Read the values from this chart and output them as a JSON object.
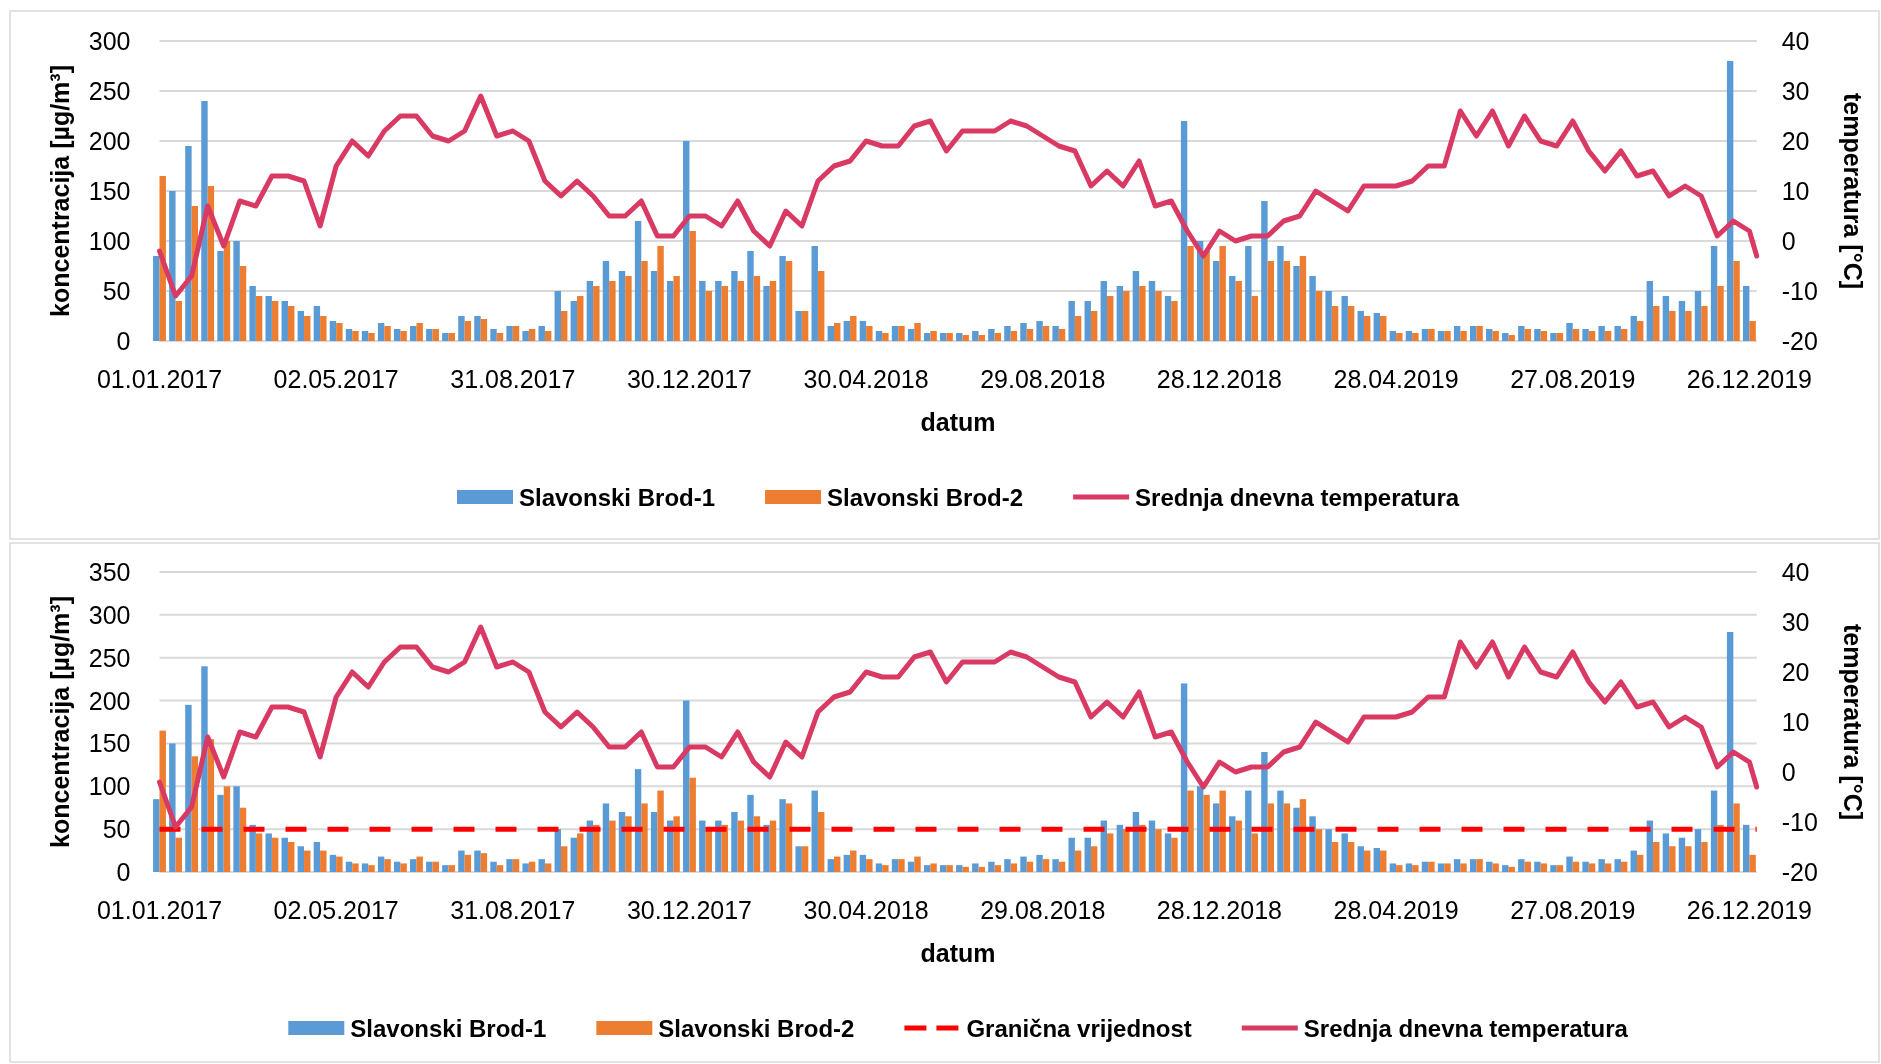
{
  "chart_data": [
    {
      "type": "bar",
      "xlabel": "datum",
      "ylabel": "koncentracija [µg/m³]",
      "y2label": "temperatura [°C]",
      "x": [
        "2017-01-01",
        "2017-01-12",
        "2017-01-23",
        "2017-02-03",
        "2017-02-14",
        "2017-02-25",
        "2017-03-08",
        "2017-03-19",
        "2017-03-30",
        "2017-04-10",
        "2017-04-21",
        "2017-05-02",
        "2017-05-13",
        "2017-05-24",
        "2017-06-04",
        "2017-06-15",
        "2017-06-26",
        "2017-07-07",
        "2017-07-18",
        "2017-07-29",
        "2017-08-09",
        "2017-08-20",
        "2017-08-31",
        "2017-09-11",
        "2017-09-22",
        "2017-10-03",
        "2017-10-14",
        "2017-10-25",
        "2017-11-05",
        "2017-11-16",
        "2017-11-27",
        "2017-12-08",
        "2017-12-19",
        "2017-12-30",
        "2018-01-10",
        "2018-01-21",
        "2018-02-01",
        "2018-02-12",
        "2018-02-23",
        "2018-03-06",
        "2018-03-17",
        "2018-03-28",
        "2018-04-08",
        "2018-04-19",
        "2018-04-30",
        "2018-05-11",
        "2018-05-22",
        "2018-06-02",
        "2018-06-13",
        "2018-06-24",
        "2018-07-05",
        "2018-07-16",
        "2018-07-27",
        "2018-08-07",
        "2018-08-18",
        "2018-08-29",
        "2018-09-09",
        "2018-09-20",
        "2018-10-01",
        "2018-10-12",
        "2018-10-23",
        "2018-11-03",
        "2018-11-14",
        "2018-11-25",
        "2018-12-06",
        "2018-12-17",
        "2018-12-28",
        "2019-01-08",
        "2019-01-19",
        "2019-01-30",
        "2019-02-10",
        "2019-02-21",
        "2019-03-04",
        "2019-03-15",
        "2019-03-26",
        "2019-04-06",
        "2019-04-17",
        "2019-04-28",
        "2019-05-09",
        "2019-05-20",
        "2019-05-31",
        "2019-06-11",
        "2019-06-22",
        "2019-07-03",
        "2019-07-14",
        "2019-07-25",
        "2019-08-05",
        "2019-08-16",
        "2019-08-27",
        "2019-09-07",
        "2019-09-18",
        "2019-09-29",
        "2019-10-10",
        "2019-10-21",
        "2019-11-01",
        "2019-11-12",
        "2019-11-23",
        "2019-12-04",
        "2019-12-15",
        "2019-12-26"
      ],
      "xlim": [
        "2017-01-01",
        "2019-12-31"
      ],
      "xticks": [
        {
          "value": "2017-01-01",
          "label": "01.01.2017"
        },
        {
          "value": "2017-05-02",
          "label": "02.05.2017"
        },
        {
          "value": "2017-08-31",
          "label": "31.08.2017"
        },
        {
          "value": "2017-12-30",
          "label": "30.12.2017"
        },
        {
          "value": "2018-04-30",
          "label": "30.04.2018"
        },
        {
          "value": "2018-08-29",
          "label": "29.08.2018"
        },
        {
          "value": "2018-12-28",
          "label": "28.12.2018"
        },
        {
          "value": "2019-04-28",
          "label": "28.04.2019"
        },
        {
          "value": "2019-08-27",
          "label": "27.08.2019"
        },
        {
          "value": "2019-12-26",
          "label": "26.12.2019"
        }
      ],
      "ylim": [
        0,
        300
      ],
      "yticks": [
        0,
        50,
        100,
        150,
        200,
        250,
        300
      ],
      "y2lim": [
        -20,
        40
      ],
      "y2ticks": [
        -20,
        -10,
        0,
        10,
        20,
        30,
        40
      ],
      "grid": "y",
      "legend": "bottom",
      "series": [
        {
          "name": "Slavonski Brod-1",
          "color": "#5b9bd5",
          "values": [
            85,
            150,
            195,
            240,
            90,
            100,
            55,
            45,
            40,
            30,
            35,
            20,
            12,
            10,
            18,
            12,
            15,
            12,
            8,
            25,
            25,
            12,
            15,
            10,
            15,
            50,
            40,
            60,
            80,
            70,
            120,
            70,
            60,
            200,
            60,
            60,
            70,
            90,
            55,
            85,
            30,
            95,
            15,
            20,
            20,
            10,
            15,
            12,
            8,
            8,
            8,
            10,
            12,
            15,
            18,
            20,
            15,
            40,
            40,
            60,
            55,
            70,
            60,
            45,
            220,
            100,
            80,
            65,
            95,
            140,
            95,
            75,
            65,
            50,
            45,
            30,
            28,
            10,
            10,
            12,
            10,
            15,
            15,
            12,
            8,
            15,
            12,
            8,
            18,
            12,
            15,
            15,
            25,
            60,
            45,
            40,
            50,
            95,
            280,
            55
          ]
        },
        {
          "name": "Slavonski Brod-2",
          "color": "#ed7d31",
          "values": [
            165,
            40,
            135,
            155,
            100,
            75,
            45,
            40,
            35,
            25,
            25,
            18,
            10,
            8,
            15,
            10,
            18,
            12,
            8,
            20,
            22,
            8,
            15,
            12,
            10,
            30,
            45,
            55,
            60,
            65,
            80,
            95,
            65,
            110,
            50,
            55,
            60,
            65,
            60,
            80,
            30,
            70,
            18,
            25,
            15,
            8,
            15,
            18,
            10,
            8,
            6,
            6,
            8,
            10,
            12,
            15,
            12,
            25,
            30,
            45,
            50,
            55,
            50,
            40,
            95,
            90,
            95,
            60,
            45,
            80,
            80,
            85,
            50,
            35,
            35,
            25,
            25,
            8,
            8,
            12,
            10,
            10,
            15,
            10,
            6,
            12,
            10,
            8,
            12,
            10,
            10,
            12,
            20,
            35,
            30,
            30,
            35,
            55,
            80,
            20
          ]
        },
        {
          "name": "Srednja dnevna temperatura",
          "type": "line",
          "axis": "y2",
          "color": "#d83a64",
          "x": [
            "2017-01-01",
            "2017-01-12",
            "2017-01-23",
            "2017-02-03",
            "2017-02-14",
            "2017-02-25",
            "2017-03-08",
            "2017-03-19",
            "2017-03-30",
            "2017-04-10",
            "2017-04-21",
            "2017-05-02",
            "2017-05-13",
            "2017-05-24",
            "2017-06-04",
            "2017-06-15",
            "2017-06-26",
            "2017-07-07",
            "2017-07-18",
            "2017-07-29",
            "2017-08-09",
            "2017-08-20",
            "2017-08-31",
            "2017-09-11",
            "2017-09-22",
            "2017-10-03",
            "2017-10-14",
            "2017-10-25",
            "2017-11-05",
            "2017-11-16",
            "2017-11-27",
            "2017-12-08",
            "2017-12-19",
            "2017-12-30",
            "2018-01-10",
            "2018-01-21",
            "2018-02-01",
            "2018-02-12",
            "2018-02-23",
            "2018-03-06",
            "2018-03-17",
            "2018-03-28",
            "2018-04-08",
            "2018-04-19",
            "2018-04-30",
            "2018-05-11",
            "2018-05-22",
            "2018-06-02",
            "2018-06-13",
            "2018-06-24",
            "2018-07-05",
            "2018-07-16",
            "2018-07-27",
            "2018-08-07",
            "2018-08-18",
            "2018-08-29",
            "2018-09-09",
            "2018-09-20",
            "2018-10-01",
            "2018-10-12",
            "2018-10-23",
            "2018-11-03",
            "2018-11-14",
            "2018-11-25",
            "2018-12-06",
            "2018-12-17",
            "2018-12-28",
            "2019-01-08",
            "2019-01-19",
            "2019-01-30",
            "2019-02-10",
            "2019-02-21",
            "2019-03-04",
            "2019-03-15",
            "2019-03-26",
            "2019-04-06",
            "2019-04-17",
            "2019-04-28",
            "2019-05-09",
            "2019-05-20",
            "2019-05-31",
            "2019-06-11",
            "2019-06-22",
            "2019-07-03",
            "2019-07-14",
            "2019-07-25",
            "2019-08-05",
            "2019-08-16",
            "2019-08-27",
            "2019-09-07",
            "2019-09-18",
            "2019-09-29",
            "2019-10-10",
            "2019-10-21",
            "2019-11-01",
            "2019-11-12",
            "2019-11-23",
            "2019-12-04",
            "2019-12-15",
            "2019-12-26",
            "2019-12-31"
          ],
          "values": [
            -2,
            -11,
            -7,
            7,
            -1,
            8,
            7,
            13,
            13,
            12,
            3,
            15,
            20,
            17,
            22,
            25,
            25,
            21,
            20,
            22,
            29,
            21,
            22,
            20,
            12,
            9,
            12,
            9,
            5,
            5,
            8,
            1,
            1,
            5,
            5,
            3,
            8,
            2,
            -1,
            6,
            3,
            12,
            15,
            16,
            20,
            19,
            19,
            23,
            24,
            18,
            22,
            22,
            22,
            24,
            23,
            21,
            19,
            18,
            11,
            14,
            11,
            16,
            7,
            8,
            2,
            -3,
            2,
            0,
            1,
            1,
            4,
            5,
            10,
            8,
            6,
            11,
            11,
            11,
            12,
            15,
            15,
            26,
            21,
            26,
            19,
            25,
            20,
            19,
            24,
            18,
            14,
            18,
            13,
            14,
            9,
            11,
            9,
            1,
            4,
            2,
            -3
          ]
        }
      ]
    },
    {
      "type": "bar",
      "xlabel": "datum",
      "ylabel": "koncentracija [µg/m³]",
      "y2label": "temperatura [°C]",
      "x": [
        "2017-01-01",
        "2017-01-12",
        "2017-01-23",
        "2017-02-03",
        "2017-02-14",
        "2017-02-25",
        "2017-03-08",
        "2017-03-19",
        "2017-03-30",
        "2017-04-10",
        "2017-04-21",
        "2017-05-02",
        "2017-05-13",
        "2017-05-24",
        "2017-06-04",
        "2017-06-15",
        "2017-06-26",
        "2017-07-07",
        "2017-07-18",
        "2017-07-29",
        "2017-08-09",
        "2017-08-20",
        "2017-08-31",
        "2017-09-11",
        "2017-09-22",
        "2017-10-03",
        "2017-10-14",
        "2017-10-25",
        "2017-11-05",
        "2017-11-16",
        "2017-11-27",
        "2017-12-08",
        "2017-12-19",
        "2017-12-30",
        "2018-01-10",
        "2018-01-21",
        "2018-02-01",
        "2018-02-12",
        "2018-02-23",
        "2018-03-06",
        "2018-03-17",
        "2018-03-28",
        "2018-04-08",
        "2018-04-19",
        "2018-04-30",
        "2018-05-11",
        "2018-05-22",
        "2018-06-02",
        "2018-06-13",
        "2018-06-24",
        "2018-07-05",
        "2018-07-16",
        "2018-07-27",
        "2018-08-07",
        "2018-08-18",
        "2018-08-29",
        "2018-09-09",
        "2018-09-20",
        "2018-10-01",
        "2018-10-12",
        "2018-10-23",
        "2018-11-03",
        "2018-11-14",
        "2018-11-25",
        "2018-12-06",
        "2018-12-17",
        "2018-12-28",
        "2019-01-08",
        "2019-01-19",
        "2019-01-30",
        "2019-02-10",
        "2019-02-21",
        "2019-03-04",
        "2019-03-15",
        "2019-03-26",
        "2019-04-06",
        "2019-04-17",
        "2019-04-28",
        "2019-05-09",
        "2019-05-20",
        "2019-05-31",
        "2019-06-11",
        "2019-06-22",
        "2019-07-03",
        "2019-07-14",
        "2019-07-25",
        "2019-08-05",
        "2019-08-16",
        "2019-08-27",
        "2019-09-07",
        "2019-09-18",
        "2019-09-29",
        "2019-10-10",
        "2019-10-21",
        "2019-11-01",
        "2019-11-12",
        "2019-11-23",
        "2019-12-04",
        "2019-12-15",
        "2019-12-26"
      ],
      "xlim": [
        "2017-01-01",
        "2019-12-31"
      ],
      "xticks": [
        {
          "value": "2017-01-01",
          "label": "01.01.2017"
        },
        {
          "value": "2017-05-02",
          "label": "02.05.2017"
        },
        {
          "value": "2017-08-31",
          "label": "31.08.2017"
        },
        {
          "value": "2017-12-30",
          "label": "30.12.2017"
        },
        {
          "value": "2018-04-30",
          "label": "30.04.2018"
        },
        {
          "value": "2018-08-29",
          "label": "29.08.2018"
        },
        {
          "value": "2018-12-28",
          "label": "28.12.2018"
        },
        {
          "value": "2019-04-28",
          "label": "28.04.2019"
        },
        {
          "value": "2019-08-27",
          "label": "27.08.2019"
        },
        {
          "value": "2019-12-26",
          "label": "26.12.2019"
        }
      ],
      "ylim": [
        0,
        350
      ],
      "yticks": [
        0,
        50,
        100,
        150,
        200,
        250,
        300,
        350
      ],
      "y2lim": [
        -20,
        40
      ],
      "y2ticks": [
        -20,
        -10,
        0,
        10,
        20,
        30,
        40
      ],
      "grid": "y",
      "legend": "bottom",
      "ref_lines": [
        {
          "axis": "y",
          "value": 50,
          "label": "Granična vrijednost",
          "color": "#ff0000",
          "line_style": "dashed"
        }
      ],
      "series": [
        {
          "name": "Slavonski Brod-1",
          "color": "#5b9bd5",
          "values": [
            85,
            150,
            195,
            240,
            90,
            100,
            55,
            45,
            40,
            30,
            35,
            20,
            12,
            10,
            18,
            12,
            15,
            12,
            8,
            25,
            25,
            12,
            15,
            10,
            15,
            50,
            40,
            60,
            80,
            70,
            120,
            70,
            60,
            200,
            60,
            60,
            70,
            90,
            55,
            85,
            30,
            95,
            15,
            20,
            20,
            10,
            15,
            12,
            8,
            8,
            8,
            10,
            12,
            15,
            18,
            20,
            15,
            40,
            40,
            60,
            55,
            70,
            60,
            45,
            220,
            100,
            80,
            65,
            95,
            140,
            95,
            75,
            65,
            50,
            45,
            30,
            28,
            10,
            10,
            12,
            10,
            15,
            15,
            12,
            8,
            15,
            12,
            8,
            18,
            12,
            15,
            15,
            25,
            60,
            45,
            40,
            50,
            95,
            280,
            55
          ]
        },
        {
          "name": "Slavonski Brod-2",
          "color": "#ed7d31",
          "values": [
            165,
            40,
            135,
            155,
            100,
            75,
            45,
            40,
            35,
            25,
            25,
            18,
            10,
            8,
            15,
            10,
            18,
            12,
            8,
            20,
            22,
            8,
            15,
            12,
            10,
            30,
            45,
            55,
            60,
            65,
            80,
            95,
            65,
            110,
            50,
            55,
            60,
            65,
            60,
            80,
            30,
            70,
            18,
            25,
            15,
            8,
            15,
            18,
            10,
            8,
            6,
            6,
            8,
            10,
            12,
            15,
            12,
            25,
            30,
            45,
            50,
            55,
            50,
            40,
            95,
            90,
            95,
            60,
            45,
            80,
            80,
            85,
            50,
            35,
            35,
            25,
            25,
            8,
            8,
            12,
            10,
            10,
            15,
            10,
            6,
            12,
            10,
            8,
            12,
            10,
            10,
            12,
            20,
            35,
            30,
            30,
            35,
            55,
            80,
            20
          ]
        },
        {
          "name": "Srednja dnevna temperatura",
          "type": "line",
          "axis": "y2",
          "color": "#d83a64",
          "x": [
            "2017-01-01",
            "2017-01-12",
            "2017-01-23",
            "2017-02-03",
            "2017-02-14",
            "2017-02-25",
            "2017-03-08",
            "2017-03-19",
            "2017-03-30",
            "2017-04-10",
            "2017-04-21",
            "2017-05-02",
            "2017-05-13",
            "2017-05-24",
            "2017-06-04",
            "2017-06-15",
            "2017-06-26",
            "2017-07-07",
            "2017-07-18",
            "2017-07-29",
            "2017-08-09",
            "2017-08-20",
            "2017-08-31",
            "2017-09-11",
            "2017-09-22",
            "2017-10-03",
            "2017-10-14",
            "2017-10-25",
            "2017-11-05",
            "2017-11-16",
            "2017-11-27",
            "2017-12-08",
            "2017-12-19",
            "2017-12-30",
            "2018-01-10",
            "2018-01-21",
            "2018-02-01",
            "2018-02-12",
            "2018-02-23",
            "2018-03-06",
            "2018-03-17",
            "2018-03-28",
            "2018-04-08",
            "2018-04-19",
            "2018-04-30",
            "2018-05-11",
            "2018-05-22",
            "2018-06-02",
            "2018-06-13",
            "2018-06-24",
            "2018-07-05",
            "2018-07-16",
            "2018-07-27",
            "2018-08-07",
            "2018-08-18",
            "2018-08-29",
            "2018-09-09",
            "2018-09-20",
            "2018-10-01",
            "2018-10-12",
            "2018-10-23",
            "2018-11-03",
            "2018-11-14",
            "2018-11-25",
            "2018-12-06",
            "2018-12-17",
            "2018-12-28",
            "2019-01-08",
            "2019-01-19",
            "2019-01-30",
            "2019-02-10",
            "2019-02-21",
            "2019-03-04",
            "2019-03-15",
            "2019-03-26",
            "2019-04-06",
            "2019-04-17",
            "2019-04-28",
            "2019-05-09",
            "2019-05-20",
            "2019-05-31",
            "2019-06-11",
            "2019-06-22",
            "2019-07-03",
            "2019-07-14",
            "2019-07-25",
            "2019-08-05",
            "2019-08-16",
            "2019-08-27",
            "2019-09-07",
            "2019-09-18",
            "2019-09-29",
            "2019-10-10",
            "2019-10-21",
            "2019-11-01",
            "2019-11-12",
            "2019-11-23",
            "2019-12-04",
            "2019-12-15",
            "2019-12-26",
            "2019-12-31"
          ],
          "values": [
            -2,
            -11,
            -7,
            7,
            -1,
            8,
            7,
            13,
            13,
            12,
            3,
            15,
            20,
            17,
            22,
            25,
            25,
            21,
            20,
            22,
            29,
            21,
            22,
            20,
            12,
            9,
            12,
            9,
            5,
            5,
            8,
            1,
            1,
            5,
            5,
            3,
            8,
            2,
            -1,
            6,
            3,
            12,
            15,
            16,
            20,
            19,
            19,
            23,
            24,
            18,
            22,
            22,
            22,
            24,
            23,
            21,
            19,
            18,
            11,
            14,
            11,
            16,
            7,
            8,
            2,
            -3,
            2,
            0,
            1,
            1,
            4,
            5,
            10,
            8,
            6,
            11,
            11,
            11,
            12,
            15,
            15,
            26,
            21,
            26,
            19,
            25,
            20,
            19,
            24,
            18,
            14,
            18,
            13,
            14,
            9,
            11,
            9,
            1,
            4,
            2,
            -3
          ]
        }
      ]
    }
  ]
}
